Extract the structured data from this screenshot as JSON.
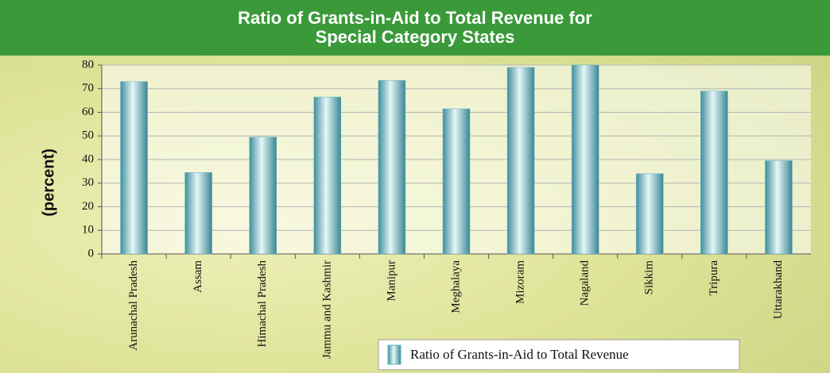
{
  "chart_data": {
    "type": "bar",
    "title": "Ratio of Grants-in-Aid to Total Revenue for Special Category States",
    "y_label": "(percent)",
    "categories": [
      "Arunachal Pradesh",
      "Assam",
      "Himachal Pradesh",
      "Jammu and Kashmir",
      "Manipur",
      "Meghalaya",
      "Mizoram",
      "Nagaland",
      "Sikkim",
      "Tripura",
      "Uttarakhand"
    ],
    "series": [
      {
        "name": "Ratio of Grants-in-Aid to Total Revenue",
        "color": "#5fb3c0",
        "values": [
          73,
          34.5,
          49.5,
          66.5,
          73.5,
          61.5,
          79,
          80,
          34,
          69,
          39.5
        ]
      }
    ],
    "ylim": [
      0,
      80
    ],
    "yticks": [
      0,
      10,
      20,
      30,
      40,
      50,
      60,
      70,
      80
    ],
    "grid": true,
    "legend": "bottom"
  }
}
